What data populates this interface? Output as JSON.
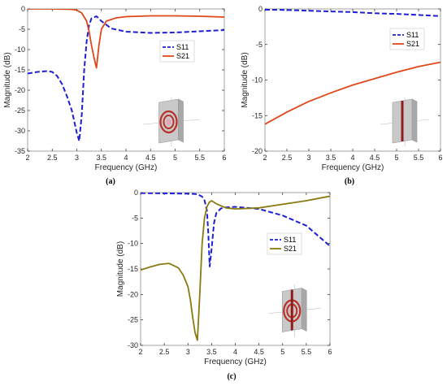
{
  "colors": {
    "s11": "#1f1fd6",
    "s21_ab": "#e0471a",
    "s21_c": "#8a7a12",
    "axis": "#262626",
    "box": "#8c8c8c"
  },
  "chart_data": [
    {
      "type": "line",
      "panel_label": "(a)",
      "xlabel": "Frequency (GHz)",
      "ylabel": "Magnitude (dB)",
      "xlim": [
        2,
        6
      ],
      "ylim": [
        -35,
        0
      ],
      "xticks": [
        "2",
        "2.5",
        "3",
        "3.5",
        "4",
        "4.5",
        "5",
        "5.5",
        "6"
      ],
      "yticks": [
        "0",
        "-5",
        "-10",
        "-15",
        "-20",
        "-25",
        "-30",
        "-35"
      ],
      "grid": false,
      "legend_position": "center-right",
      "inset": "single split-ring resonator on substrate",
      "series": [
        {
          "name": "S11",
          "style": "dashed",
          "x": [
            2.0,
            2.2,
            2.4,
            2.5,
            2.6,
            2.7,
            2.8,
            2.9,
            3.0,
            3.05,
            3.1,
            3.15,
            3.2,
            3.25,
            3.3,
            3.4,
            3.5,
            3.7,
            4.0,
            4.5,
            5.0,
            5.5,
            6.0
          ],
          "y": [
            -15.9,
            -15.5,
            -15.3,
            -15.5,
            -16.5,
            -18.5,
            -21.5,
            -25.0,
            -30.5,
            -32.5,
            -26.0,
            -15.0,
            -8.0,
            -4.0,
            -2.3,
            -1.8,
            -3.0,
            -4.8,
            -5.6,
            -5.9,
            -5.8,
            -5.5,
            -5.2
          ]
        },
        {
          "name": "S21",
          "style": "solid",
          "x": [
            2.0,
            2.5,
            2.9,
            3.0,
            3.1,
            3.2,
            3.25,
            3.3,
            3.35,
            3.4,
            3.45,
            3.5,
            3.6,
            3.8,
            4.0,
            4.5,
            5.0,
            5.5,
            6.0
          ],
          "y": [
            0.0,
            0.0,
            -0.1,
            -0.3,
            -1.0,
            -3.0,
            -5.5,
            -9.0,
            -12.0,
            -14.5,
            -9.0,
            -5.0,
            -3.0,
            -2.2,
            -1.9,
            -1.7,
            -1.7,
            -1.8,
            -2.0
          ]
        }
      ]
    },
    {
      "type": "line",
      "panel_label": "(b)",
      "xlabel": "Frequency (GHz)",
      "ylabel": "Magnitude (dB)",
      "xlim": [
        2,
        6
      ],
      "ylim": [
        -20,
        0
      ],
      "xticks": [
        "2",
        "2.5",
        "3",
        "3.5",
        "4",
        "4.5",
        "5",
        "5.5",
        "6"
      ],
      "yticks": [
        "0",
        "-5",
        "-10",
        "-15",
        "-20"
      ],
      "grid": false,
      "legend_position": "top-right",
      "inset": "metal strip on substrate",
      "series": [
        {
          "name": "S11",
          "style": "dashed",
          "x": [
            2.0,
            2.5,
            3.0,
            3.5,
            4.0,
            4.5,
            5.0,
            5.5,
            6.0
          ],
          "y": [
            -0.1,
            -0.15,
            -0.25,
            -0.35,
            -0.45,
            -0.6,
            -0.7,
            -0.85,
            -1.0
          ]
        },
        {
          "name": "S21",
          "style": "solid",
          "x": [
            2.0,
            2.5,
            3.0,
            3.5,
            4.0,
            4.5,
            5.0,
            5.5,
            6.0
          ],
          "y": [
            -16.2,
            -14.5,
            -13.0,
            -11.8,
            -10.7,
            -9.8,
            -8.9,
            -8.1,
            -7.5
          ]
        }
      ]
    },
    {
      "type": "line",
      "panel_label": "(c)",
      "xlabel": "Frequency (GHz)",
      "ylabel": "Magnitude (dB)",
      "xlim": [
        2,
        6
      ],
      "ylim": [
        -30,
        0
      ],
      "xticks": [
        "2",
        "2.5",
        "3",
        "3.5",
        "4",
        "4.5",
        "5",
        "5.5",
        "6"
      ],
      "yticks": [
        "0",
        "-5",
        "-10",
        "-15",
        "-20",
        "-25",
        "-30"
      ],
      "grid": false,
      "legend_position": "center-right",
      "inset": "split-ring resonator with metal strip on substrate",
      "series": [
        {
          "name": "S11",
          "style": "dashed",
          "x": [
            2.0,
            2.5,
            3.0,
            3.2,
            3.3,
            3.35,
            3.4,
            3.43,
            3.46,
            3.5,
            3.55,
            3.6,
            3.7,
            3.8,
            4.0,
            4.5,
            5.0,
            5.5,
            6.0
          ],
          "y": [
            -0.1,
            -0.15,
            -0.2,
            -0.3,
            -0.8,
            -1.5,
            -3.5,
            -8.0,
            -14.5,
            -11.0,
            -6.0,
            -4.0,
            -3.1,
            -2.9,
            -2.8,
            -3.2,
            -4.5,
            -6.5,
            -10.5
          ]
        },
        {
          "name": "S21",
          "style": "solid",
          "x": [
            2.0,
            2.2,
            2.4,
            2.6,
            2.8,
            2.9,
            3.0,
            3.05,
            3.1,
            3.15,
            3.2,
            3.25,
            3.3,
            3.35,
            3.4,
            3.45,
            3.5,
            3.6,
            3.8,
            4.0,
            4.5,
            5.0,
            5.5,
            6.0
          ],
          "y": [
            -15.2,
            -14.6,
            -14.1,
            -13.9,
            -14.8,
            -16.2,
            -18.5,
            -21.0,
            -24.5,
            -27.5,
            -29.0,
            -20.0,
            -10.0,
            -5.0,
            -2.8,
            -1.9,
            -1.6,
            -2.2,
            -3.0,
            -3.2,
            -3.0,
            -2.3,
            -1.6,
            -0.7
          ]
        }
      ]
    }
  ]
}
